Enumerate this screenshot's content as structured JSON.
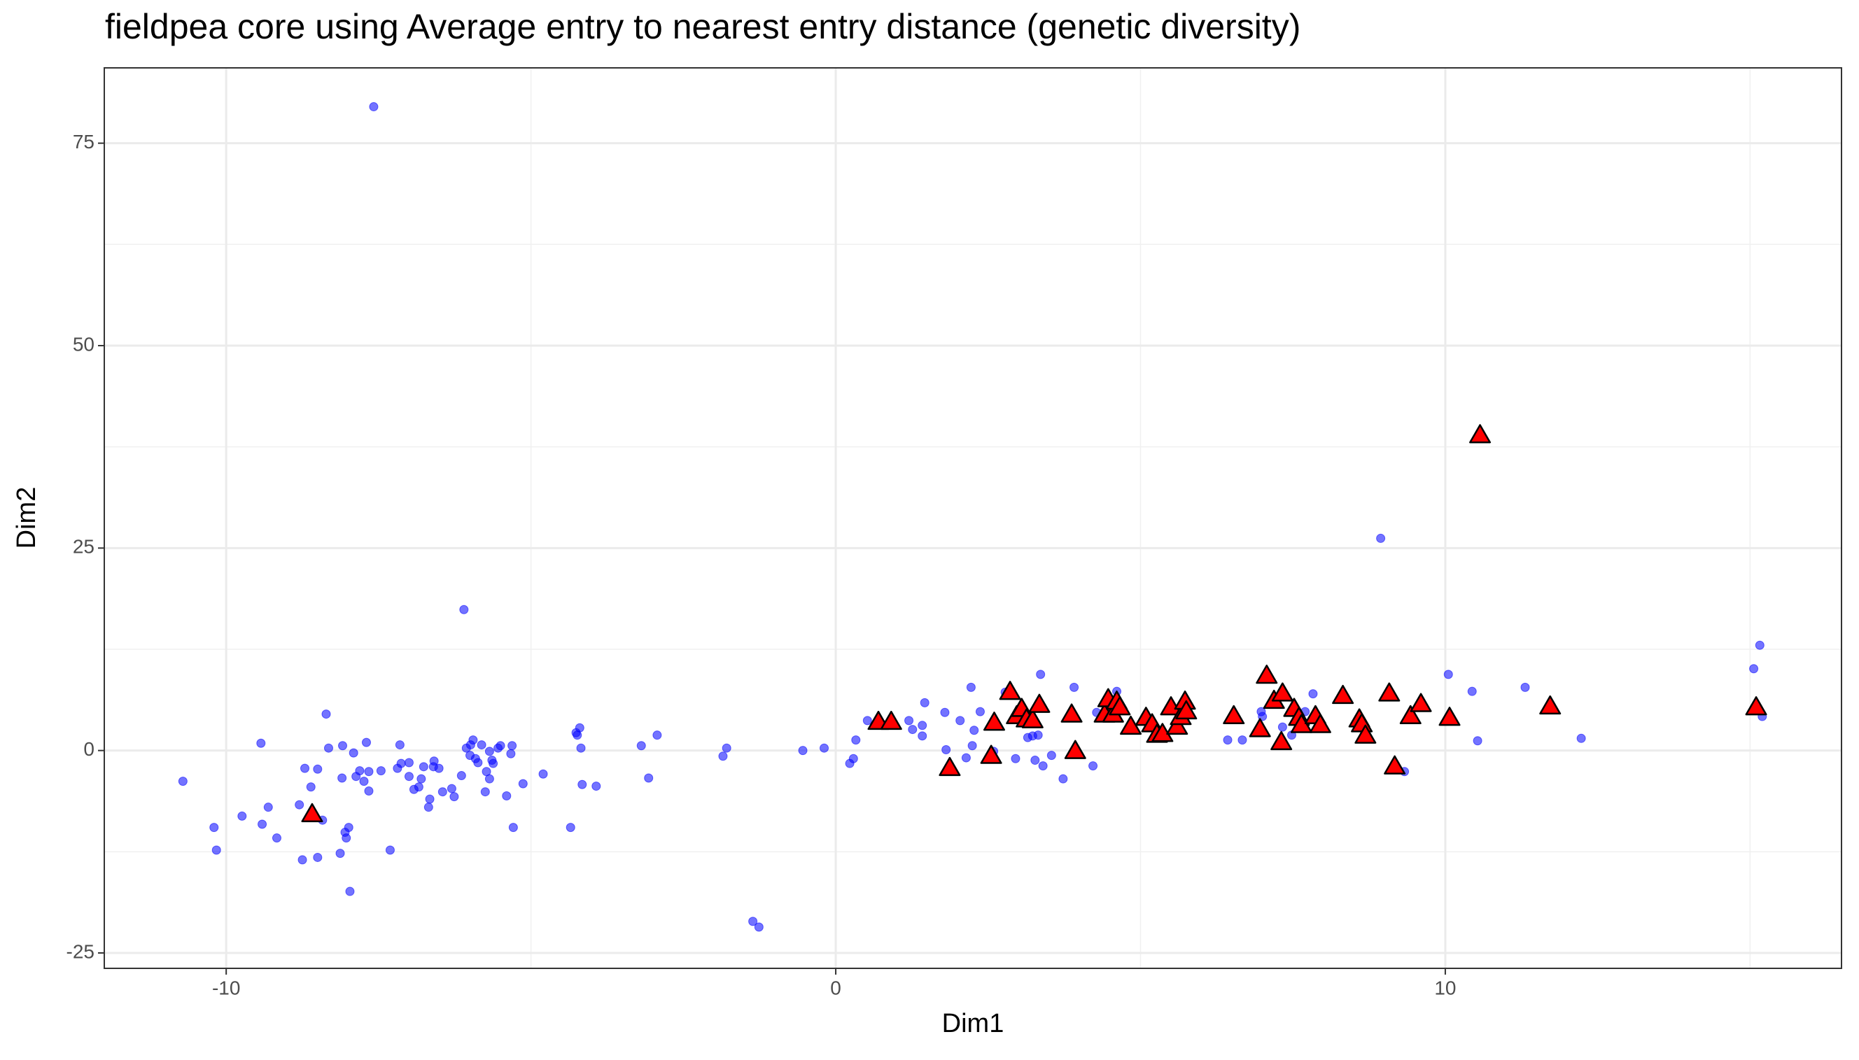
{
  "chart_data": {
    "type": "scatter",
    "title": "fieldpea core using Average entry to nearest entry distance (genetic diversity)",
    "x_label": "Dim1",
    "y_label": "Dim2",
    "xlim": [
      -12,
      16.5
    ],
    "ylim": [
      -26.9,
      84.3
    ],
    "xticks": [
      -10,
      0,
      10
    ],
    "yticks": [
      -25,
      0,
      25,
      50,
      75
    ],
    "grid": true,
    "series": [
      {
        "marker": "circle",
        "color": "#0000ff",
        "x": [
          -7.58,
          -6.1,
          8.94,
          -10.71,
          -10.2,
          -10.16,
          -9.74,
          -9.43,
          -9.41,
          -9.31,
          -9.17,
          -8.8,
          -8.75,
          -8.71,
          -8.61,
          -8.5,
          -8.5,
          -8.42,
          -8.36,
          -8.32,
          -8.13,
          -8.1,
          -8.09,
          -8.05,
          -8.03,
          -7.99,
          -7.97,
          -7.91,
          -7.87,
          -7.81,
          -7.74,
          -7.7,
          -7.66,
          -7.66,
          -7.46,
          -7.31,
          -7.19,
          -7.15,
          -7.13,
          -7.0,
          -7.0,
          -6.92,
          -6.84,
          -6.8,
          -6.76,
          -6.68,
          -6.66,
          -6.6,
          -6.59,
          -6.51,
          -6.45,
          -6.3,
          -6.26,
          -6.14,
          -6.06,
          -6.0,
          -5.99,
          -5.95,
          -5.91,
          -5.87,
          -5.81,
          -5.75,
          -5.73,
          -5.68,
          -5.68,
          -5.64,
          -5.62,
          -5.54,
          -5.5,
          -5.4,
          -5.33,
          -5.31,
          -5.29,
          -5.13,
          -4.8,
          -4.35,
          -4.26,
          -4.24,
          -4.2,
          -4.18,
          -4.16,
          -3.93,
          -3.19,
          -3.07,
          -2.93,
          -1.85,
          -1.79,
          -1.36,
          -1.26,
          -0.54,
          -0.19,
          0.23,
          0.29,
          0.33,
          0.52,
          1.2,
          1.26,
          1.42,
          1.42,
          1.46,
          1.79,
          1.81,
          2.04,
          2.14,
          2.22,
          2.24,
          2.27,
          2.37,
          2.59,
          2.78,
          2.95,
          3.01,
          3.15,
          3.23,
          3.27,
          3.32,
          3.36,
          3.4,
          3.54,
          3.73,
          3.91,
          4.22,
          4.28,
          4.61,
          6.43,
          6.67,
          6.98,
          7.0,
          7.33,
          7.48,
          7.7,
          7.83,
          9.33,
          10.05,
          10.44,
          10.53,
          11.31,
          12.23,
          15.06,
          15.16,
          15.2
        ],
        "values": [
          79.5,
          17.4,
          26.2,
          -3.8,
          -9.5,
          -12.3,
          -8.1,
          0.9,
          -9.1,
          -7.0,
          -10.8,
          -6.7,
          -13.5,
          -2.2,
          -4.5,
          -2.3,
          -13.2,
          -8.6,
          4.5,
          0.3,
          -12.7,
          -3.4,
          0.6,
          -10.1,
          -10.8,
          -9.5,
          -17.4,
          -0.3,
          -3.2,
          -2.5,
          -3.8,
          1.0,
          -5.0,
          -2.6,
          -2.5,
          -12.3,
          -2.2,
          0.7,
          -1.6,
          -3.2,
          -1.5,
          -4.8,
          -4.5,
          -3.5,
          -2.0,
          -7.0,
          -6.0,
          -2.0,
          -1.3,
          -2.2,
          -5.1,
          -4.7,
          -5.7,
          -3.1,
          0.3,
          -0.6,
          0.7,
          1.3,
          -1.0,
          -1.5,
          0.7,
          -5.1,
          -2.6,
          -0.1,
          -3.5,
          -1.2,
          -1.6,
          0.3,
          0.6,
          -5.6,
          -0.4,
          0.6,
          -9.5,
          -4.1,
          -2.9,
          -9.5,
          2.2,
          1.9,
          2.8,
          0.3,
          -4.2,
          -4.4,
          0.6,
          -3.4,
          1.9,
          -0.7,
          0.3,
          -21.1,
          -21.8,
          0.0,
          0.3,
          -1.6,
          -1.0,
          1.3,
          3.7,
          3.7,
          2.6,
          3.1,
          1.8,
          5.9,
          4.7,
          0.1,
          3.7,
          -0.9,
          7.8,
          0.6,
          2.5,
          4.8,
          -0.1,
          7.2,
          -1.0,
          5.1,
          1.6,
          1.8,
          -1.2,
          1.9,
          9.4,
          -1.9,
          -0.6,
          -3.5,
          7.8,
          -1.9,
          4.7,
          7.3,
          1.3,
          1.3,
          4.8,
          4.2,
          2.9,
          1.9,
          4.8,
          7.0,
          -2.6,
          9.4,
          7.3,
          1.2,
          7.8,
          1.5,
          10.1,
          13.0,
          4.2
        ]
      },
      {
        "marker": "triangle",
        "color": "#ff0000",
        "x": [
          -8.59,
          0.7,
          0.91,
          1.87,
          2.55,
          2.6,
          2.86,
          2.97,
          3.05,
          3.13,
          3.23,
          3.34,
          3.87,
          3.93,
          4.41,
          4.47,
          4.55,
          4.61,
          4.66,
          4.84,
          5.09,
          5.19,
          5.27,
          5.36,
          5.5,
          5.6,
          5.66,
          5.73,
          5.75,
          6.53,
          6.96,
          7.07,
          7.19,
          7.33,
          7.31,
          7.52,
          7.6,
          7.64,
          7.87,
          7.95,
          8.32,
          8.59,
          8.63,
          8.69,
          9.08,
          9.17,
          9.43,
          9.6,
          10.07,
          10.57,
          11.72,
          15.1
        ],
        "values": [
          -7.9,
          3.5,
          3.5,
          -2.2,
          -0.7,
          3.4,
          7.2,
          4.2,
          5.1,
          3.8,
          3.7,
          5.6,
          4.4,
          -0.1,
          4.4,
          6.3,
          4.4,
          6.0,
          5.3,
          2.9,
          4.0,
          3.2,
          1.9,
          2.0,
          5.3,
          2.9,
          4.1,
          6.0,
          4.8,
          4.2,
          2.6,
          9.2,
          6.1,
          7.0,
          1.0,
          5.1,
          4.0,
          3.1,
          4.2,
          3.1,
          6.7,
          3.8,
          3.2,
          1.8,
          7.0,
          -2.0,
          4.2,
          5.7,
          4.0,
          38.9,
          5.4,
          5.3
        ]
      }
    ]
  }
}
